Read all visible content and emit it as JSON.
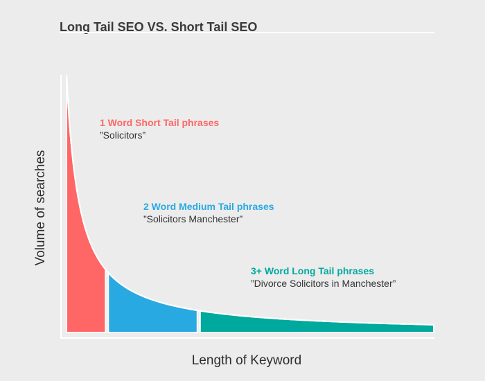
{
  "chart_data": {
    "type": "area",
    "title": "Long Tail SEO VS. Short Tail SEO",
    "xlabel": "Length of Keyword",
    "ylabel": "Volume of searches",
    "grid": false,
    "legend": "none",
    "curve": {
      "shape": "decay",
      "start": 1.0,
      "end": 0.03
    },
    "segments": [
      {
        "name": "1 Word Short Tail phrases",
        "example": "”Solicitors”",
        "range": [
          0,
          0.11
        ],
        "color": "#ff6666"
      },
      {
        "name": "2 Word Medium Tail phrases",
        "example": "”Solicitors Manchester”",
        "range": [
          0.11,
          0.36
        ],
        "color": "#29a9e1"
      },
      {
        "name": "3+ Word Long Tail phrases",
        "example": "”Divorce Solicitors in Manchester”",
        "range": [
          0.36,
          1.0
        ],
        "color": "#00a99d"
      }
    ]
  }
}
